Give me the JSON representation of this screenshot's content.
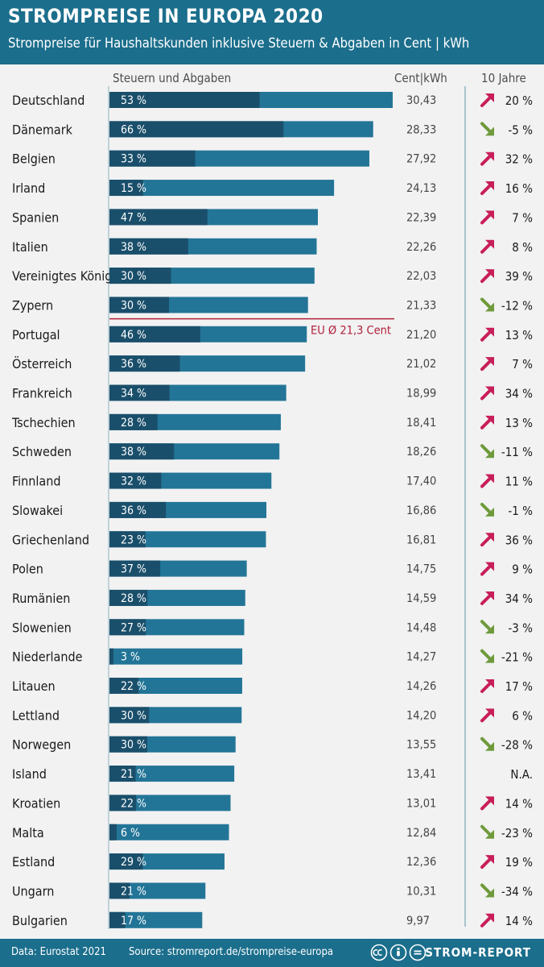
{
  "header": {
    "title": "STROMPREISE IN EUROPA 2020",
    "subtitle": "Strompreise für Haushaltskunden inklusive Steuern & Abgaben in Cent | kWh"
  },
  "columns": {
    "taxes": "Steuern und Abgaben",
    "price": "Cent|kWh",
    "trend": "10 Jahre"
  },
  "colors": {
    "header_bg": "#1b6e8c",
    "bar_total": "#237597",
    "bar_tax": "#1a4f6b",
    "eu_line": "#b0203a",
    "up_arrow": "#c81e5a",
    "down_arrow": "#6f9a3c"
  },
  "chart_data": {
    "type": "bar",
    "orientation": "horizontal",
    "stacked_share": true,
    "title": "STROMPREISE IN EUROPA 2020",
    "subtitle": "Strompreise für Haushaltskunden inklusive Steuern & Abgaben in Cent | kWh",
    "xlim": [
      0,
      30.43
    ],
    "categories": [
      "Deutschland",
      "Dänemark",
      "Belgien",
      "Irland",
      "Spanien",
      "Italien",
      "Vereinigtes Königreich",
      "Zypern",
      "Portugal",
      "Österreich",
      "Frankreich",
      "Tschechien",
      "Schweden",
      "Finnland",
      "Slowakei",
      "Griechenland",
      "Polen",
      "Rumänien",
      "Slowenien",
      "Niederlande",
      "Litauen",
      "Lettland",
      "Norwegen",
      "Island",
      "Kroatien",
      "Malta",
      "Estland",
      "Ungarn",
      "Bulgarien"
    ],
    "values": [
      30.43,
      28.33,
      27.92,
      24.13,
      22.39,
      22.26,
      22.03,
      21.33,
      21.2,
      21.02,
      18.99,
      18.41,
      18.26,
      17.4,
      16.86,
      16.81,
      14.75,
      14.59,
      14.48,
      14.27,
      14.26,
      14.2,
      13.55,
      13.41,
      13.01,
      12.84,
      12.36,
      10.31,
      9.97
    ],
    "value_labels": [
      "30,43",
      "28,33",
      "27,92",
      "24,13",
      "22,39",
      "22,26",
      "22,03",
      "21,33",
      "21,20",
      "21,02",
      "18,99",
      "18,41",
      "18,26",
      "17,40",
      "16,86",
      "16,81",
      "14,75",
      "14,59",
      "14,48",
      "14,27",
      "14,26",
      "14,20",
      "13,55",
      "13,41",
      "13,01",
      "12,84",
      "12,36",
      "10,31",
      "9,97"
    ],
    "tax_share": [
      53,
      66,
      33,
      15,
      47,
      38,
      30,
      30,
      46,
      36,
      34,
      28,
      38,
      32,
      36,
      23,
      37,
      28,
      27,
      3,
      22,
      30,
      30,
      21,
      22,
      6,
      29,
      21,
      17
    ],
    "tax_labels": [
      "53 %",
      "66 %",
      "33 %",
      "15 %",
      "47 %",
      "38 %",
      "30 %",
      "30 %",
      "46 %",
      "36 %",
      "34 %",
      "28 %",
      "38 %",
      "32 %",
      "36 %",
      "23 %",
      "37 %",
      "28 %",
      "27 %",
      "3 %",
      "22 %",
      "30 %",
      "30 %",
      "21 %",
      "22 %",
      "6 %",
      "29 %",
      "21 %",
      "17 %"
    ],
    "change_10y": [
      20,
      -5,
      32,
      16,
      7,
      8,
      39,
      -12,
      13,
      7,
      34,
      13,
      -11,
      11,
      -1,
      36,
      9,
      34,
      -3,
      -21,
      17,
      6,
      -28,
      null,
      14,
      -23,
      19,
      -34,
      14
    ],
    "change_labels": [
      "20 %",
      "-5 %",
      "32 %",
      "16 %",
      "7 %",
      "8 %",
      "39 %",
      "-12 %",
      "13 %",
      "7 %",
      "34 %",
      "13 %",
      "-11 %",
      "11 %",
      "-1 %",
      "36 %",
      "9 %",
      "34 %",
      "-3 %",
      "-21 %",
      "17 %",
      "6 %",
      "-28 %",
      "N.A.",
      "14 %",
      "-23 %",
      "19 %",
      "-34 %",
      "14 %"
    ],
    "reference_line": {
      "value": 21.3,
      "label": "EU Ø 21,3 Cent",
      "after_index": 7
    }
  },
  "footer": {
    "data_source": "Data: Eurostat 2021",
    "source": "Source: stromreport.de/strompreise-europa",
    "brand": "STROM-REPORT"
  }
}
